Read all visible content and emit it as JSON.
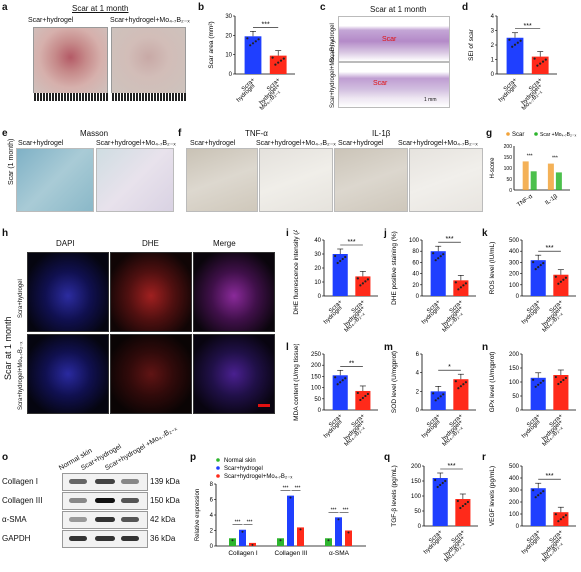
{
  "panels": {
    "a": {
      "label": "a",
      "title": "Scar at 1 month",
      "left_caption": "Scar+hydrogel",
      "right_caption": "Scar+hydrogel+Mo₄.₇B₂₋ₓ"
    },
    "c": {
      "label": "c",
      "title": "Scar at 1 month",
      "row1": "Scar+hydrogel",
      "row2": "Scar+hydrogel+Mo₄.₇B₂₋ₓ",
      "scar_label": "Scar",
      "scalebar": "1 mm"
    },
    "e": {
      "label": "e",
      "title": "Masson",
      "left_caption": "Scar+hydrogel",
      "right_caption": "Scar+hydrogel+Mo₄.₇B₂₋ₓ",
      "side_label": "Scar (1 month)"
    },
    "f": {
      "label": "f",
      "title1": "TNF-α",
      "title2": "IL-1β",
      "c1": "Scar+hydrogel",
      "c2": "Scar+hydrogel+Mo₄.₇B₂₋ₓ",
      "c3": "Scar+hydrogel",
      "c4": "Scar+hydrogel+Mo₄.₇B₂₋ₓ"
    },
    "h": {
      "label": "h",
      "col1": "DAPI",
      "col2": "DHE",
      "col3": "Merge",
      "side_label": "Scar at 1 month",
      "row1": "Scra+hydrogel",
      "row2": "Scra+hydrogel+Mo₄.₇B₂₋ₓ"
    },
    "o": {
      "label": "o",
      "columns": [
        "Normal skin",
        "Scar+hydrogel",
        "Scar+hydrogel +Mo₄.₇B₂₋ₓ"
      ],
      "rows": [
        {
          "name": "Collagen I",
          "kda": "139 kDa"
        },
        {
          "name": "Collagen III",
          "kda": "150 kDa"
        },
        {
          "name": "α-SMA",
          "kda": "42 kDa"
        },
        {
          "name": "GAPDH",
          "kda": "36 kDa"
        }
      ]
    },
    "p_label": "p",
    "b_label": "b",
    "d_label": "d",
    "g_label": "g",
    "i_label": "i",
    "j_label": "j",
    "k_label": "k",
    "l_label": "l",
    "m_label": "m",
    "n_label": "n",
    "q_label": "q",
    "r_label": "r"
  },
  "colors": {
    "blue": "#1f3fff",
    "red": "#ff2a1a",
    "green": "#2db52d",
    "orange": "#f2a33a"
  },
  "chart_data": [
    {
      "id": "b",
      "type": "bar",
      "categories": [
        "Scra+ hydrogel",
        "Scra+ hydrogel+ Mo₄.₇B₂₋ₓ"
      ],
      "values": [
        19.5,
        9.5
      ],
      "ylabel": "Scar area (mm²)",
      "ylim": [
        0,
        30
      ],
      "yticks": [
        "0",
        "10",
        "20",
        "30"
      ],
      "sig": "***"
    },
    {
      "id": "d",
      "type": "bar",
      "categories": [
        "Scra+ hydrogel",
        "Scra+ hydrogel+ Mo₄.₇B₂₋ₓ"
      ],
      "values": [
        2.5,
        1.2
      ],
      "ylabel": "SEI of scar",
      "ylim": [
        0,
        4
      ],
      "yticks": [
        "0",
        "1",
        "2",
        "3",
        "4"
      ],
      "sig": "***"
    },
    {
      "id": "g",
      "type": "bar",
      "categories": [
        "TNF-α",
        "IL-1β"
      ],
      "series": [
        {
          "name": "Scar",
          "values": [
            130,
            120
          ]
        },
        {
          "name": "Scar +Mo₄.₇B₂₋ₓ",
          "values": [
            85,
            80
          ]
        }
      ],
      "ylabel": "H-score",
      "ylim": [
        0,
        200
      ],
      "yticks": [
        "0",
        "50",
        "100",
        "150",
        "200"
      ],
      "sig": [
        "***",
        "***"
      ]
    },
    {
      "id": "i",
      "type": "bar",
      "categories": [
        "Scra+ hydrogel",
        "Scra+ hydrogel+ Mo₄.₇B₂₋ₓ"
      ],
      "values": [
        30,
        14
      ],
      "ylabel": "DHE fluorescence intensity (AU)",
      "ylim": [
        0,
        40
      ],
      "yticks": [
        "0",
        "10",
        "20",
        "30",
        "40"
      ],
      "sig": "***"
    },
    {
      "id": "j",
      "type": "bar",
      "categories": [
        "Scra+ hydrogel",
        "Scra+ hydrogel+ Mo₄.₇B₂₋ₓ"
      ],
      "values": [
        80,
        28
      ],
      "ylabel": "DHE positive staining (%)",
      "ylim": [
        0,
        100
      ],
      "yticks": [
        "0",
        "20",
        "40",
        "60",
        "80",
        "100"
      ],
      "sig": "***"
    },
    {
      "id": "k",
      "type": "bar",
      "categories": [
        "Scra+ hydrogel",
        "Scra+ hydrogel+ Mo₄.₇B₂₋ₓ"
      ],
      "values": [
        320,
        190
      ],
      "ylabel": "ROS level (IU/mL)",
      "ylim": [
        0,
        500
      ],
      "yticks": [
        "0",
        "100",
        "200",
        "300",
        "400",
        "500"
      ],
      "sig": "***"
    },
    {
      "id": "l",
      "type": "bar",
      "categories": [
        "Scra+ hydrogel",
        "Scra+ hydrogel+ Mo₄.₇B₂₋ₓ"
      ],
      "values": [
        155,
        85
      ],
      "ylabel": "MDA content (U/mg tissue)",
      "ylim": [
        0,
        250
      ],
      "yticks": [
        "0",
        "50",
        "100",
        "150",
        "200",
        "250"
      ],
      "sig": "**"
    },
    {
      "id": "m",
      "type": "bar",
      "categories": [
        "Scra+ hydrogel",
        "Scra+ hydrogel+ Mo₄.₇B₂₋ₓ"
      ],
      "values": [
        2.0,
        3.3
      ],
      "ylabel": "SOD level (U/mgprot)",
      "ylim": [
        0,
        6
      ],
      "yticks": [
        "0",
        "2",
        "4",
        "6"
      ],
      "sig": "*"
    },
    {
      "id": "n",
      "type": "bar",
      "categories": [
        "Scra+ hydrogel",
        "Scra+ hydrogel+ Mo₄.₇B₂₋ₓ"
      ],
      "values": [
        115,
        125
      ],
      "ylabel": "GPx level (U/mgprot)",
      "ylim": [
        0,
        200
      ],
      "yticks": [
        "0",
        "50",
        "100",
        "150",
        "200"
      ],
      "sig": ""
    },
    {
      "id": "p",
      "type": "bar",
      "categories": [
        "Collagen I",
        "Collagen III",
        "α-SMA"
      ],
      "series": [
        {
          "name": "Normal skin",
          "values": [
            1.0,
            1.0,
            1.0
          ]
        },
        {
          "name": "Scar+hydrogel",
          "values": [
            2.1,
            6.5,
            3.7
          ]
        },
        {
          "name": "Scar+hydrogel+Mo₄.₇B₂₋ₓ",
          "values": [
            0.4,
            2.4,
            2.0
          ]
        }
      ],
      "ylabel": "Relative expression",
      "ylim": [
        0,
        8
      ],
      "yticks": [
        "0",
        "2",
        "4",
        "6",
        "8"
      ],
      "sig": [
        "***",
        "***",
        "***",
        "***",
        "***",
        "***"
      ]
    },
    {
      "id": "q",
      "type": "bar",
      "categories": [
        "Scra+ hydrogel",
        "Scra+ hydrogel+ Mo₄.₇B₂₋ₓ"
      ],
      "values": [
        160,
        90
      ],
      "ylabel": "TGF-β levels (pg/mL)",
      "ylim": [
        0,
        200
      ],
      "yticks": [
        "0",
        "50",
        "100",
        "150",
        "200"
      ],
      "sig": "***"
    },
    {
      "id": "r",
      "type": "bar",
      "categories": [
        "Scra+ hydrogel",
        "Scra+ hydrogel+ Mo₄.₇B₂₋ₓ"
      ],
      "values": [
        315,
        115
      ],
      "ylabel": "VEGF levels (pg/mL)",
      "ylim": [
        0,
        500
      ],
      "yticks": [
        "0",
        "100",
        "200",
        "300",
        "400",
        "500"
      ],
      "sig": "***"
    }
  ]
}
